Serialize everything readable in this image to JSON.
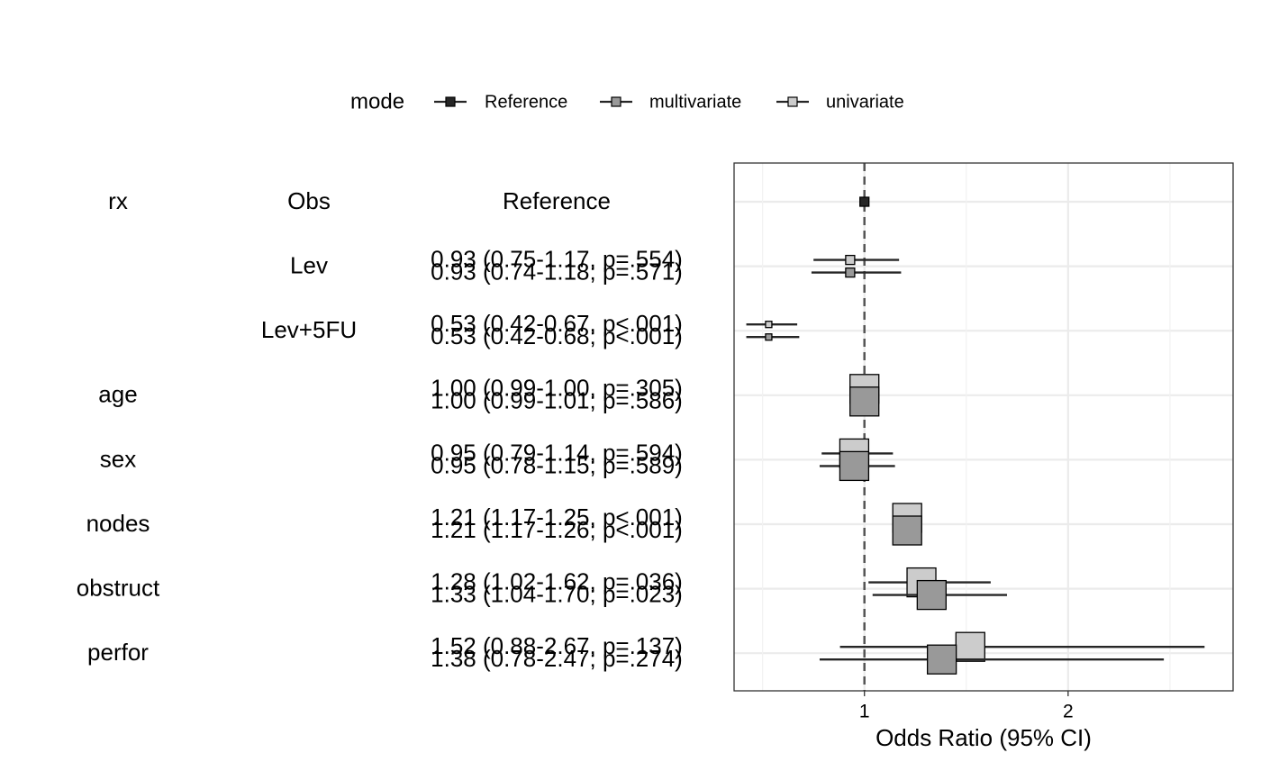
{
  "legend": {
    "title": "mode",
    "position": "top",
    "entries": [
      {
        "label": "Reference",
        "color": "#262626"
      },
      {
        "label": "multivariate",
        "color": "#999999"
      },
      {
        "label": "univariate",
        "color": "#cccccc"
      }
    ]
  },
  "table": {
    "headers": [
      "rx",
      "Obs",
      "Reference"
    ]
  },
  "chart_data": {
    "type": "forest",
    "xlabel": "Odds Ratio (95% CI)",
    "x_ticks": [
      "1",
      "2"
    ],
    "xlim": [
      0.36,
      2.81
    ],
    "reference_line": 1,
    "grid": true,
    "rows": [
      {
        "variable": "rx",
        "level": "Obs",
        "estimates": [
          {
            "mode": "Reference",
            "or": 1,
            "lo": 1,
            "hi": 1,
            "size": 0.18
          }
        ]
      },
      {
        "variable": "",
        "level": "Lev",
        "labels": [
          "0.93 (0.75-1.17, p=.554)",
          "0.93 (0.74-1.18; p=.571)"
        ],
        "estimates": [
          {
            "mode": "univariate",
            "or": 0.93,
            "lo": 0.75,
            "hi": 1.17,
            "size": 0.16
          },
          {
            "mode": "multivariate",
            "or": 0.93,
            "lo": 0.74,
            "hi": 1.18,
            "size": 0.16
          }
        ]
      },
      {
        "variable": "",
        "level": "Lev+5FU",
        "labels": [
          "0.53 (0.42-0.67, p<.001)",
          "0.53 (0.42-0.68; p<.001)"
        ],
        "estimates": [
          {
            "mode": "univariate",
            "or": 0.53,
            "lo": 0.42,
            "hi": 0.67,
            "size": 0.1
          },
          {
            "mode": "multivariate",
            "or": 0.53,
            "lo": 0.42,
            "hi": 0.68,
            "size": 0.1
          }
        ]
      },
      {
        "variable": "age",
        "level": "",
        "labels": [
          "1.00 (0.99-1.00, p=.305)",
          "1.00 (0.99-1.01; p=.586)"
        ],
        "estimates": [
          {
            "mode": "univariate",
            "or": 1.0,
            "lo": 0.99,
            "hi": 1.0,
            "size": 0.64
          },
          {
            "mode": "multivariate",
            "or": 1.0,
            "lo": 0.99,
            "hi": 1.01,
            "size": 0.64
          }
        ]
      },
      {
        "variable": "sex",
        "level": "",
        "labels": [
          "0.95 (0.79-1.14, p=.594)",
          "0.95 (0.78-1.15; p=.589)"
        ],
        "estimates": [
          {
            "mode": "univariate",
            "or": 0.95,
            "lo": 0.79,
            "hi": 1.14,
            "size": 0.64
          },
          {
            "mode": "multivariate",
            "or": 0.95,
            "lo": 0.78,
            "hi": 1.15,
            "size": 0.64
          }
        ]
      },
      {
        "variable": "nodes",
        "level": "",
        "labels": [
          "1.21 (1.17-1.25, p<.001)",
          "1.21 (1.17-1.26; p<.001)"
        ],
        "estimates": [
          {
            "mode": "univariate",
            "or": 1.21,
            "lo": 1.17,
            "hi": 1.25,
            "size": 0.64
          },
          {
            "mode": "multivariate",
            "or": 1.21,
            "lo": 1.17,
            "hi": 1.26,
            "size": 0.64
          }
        ]
      },
      {
        "variable": "obstruct",
        "level": "",
        "labels": [
          "1.28 (1.02-1.62, p=.036)",
          "1.33 (1.04-1.70; p=.023)"
        ],
        "estimates": [
          {
            "mode": "univariate",
            "or": 1.28,
            "lo": 1.02,
            "hi": 1.62,
            "size": 0.64
          },
          {
            "mode": "multivariate",
            "or": 1.33,
            "lo": 1.04,
            "hi": 1.7,
            "size": 0.64
          }
        ]
      },
      {
        "variable": "perfor",
        "level": "",
        "labels": [
          "1.52 (0.88-2.67, p=.137)",
          "1.38 (0.78-2.47; p=.274)"
        ],
        "estimates": [
          {
            "mode": "univariate",
            "or": 1.52,
            "lo": 0.88,
            "hi": 2.67,
            "size": 0.64
          },
          {
            "mode": "multivariate",
            "or": 1.38,
            "lo": 0.78,
            "hi": 2.47,
            "size": 0.64
          }
        ]
      }
    ]
  }
}
